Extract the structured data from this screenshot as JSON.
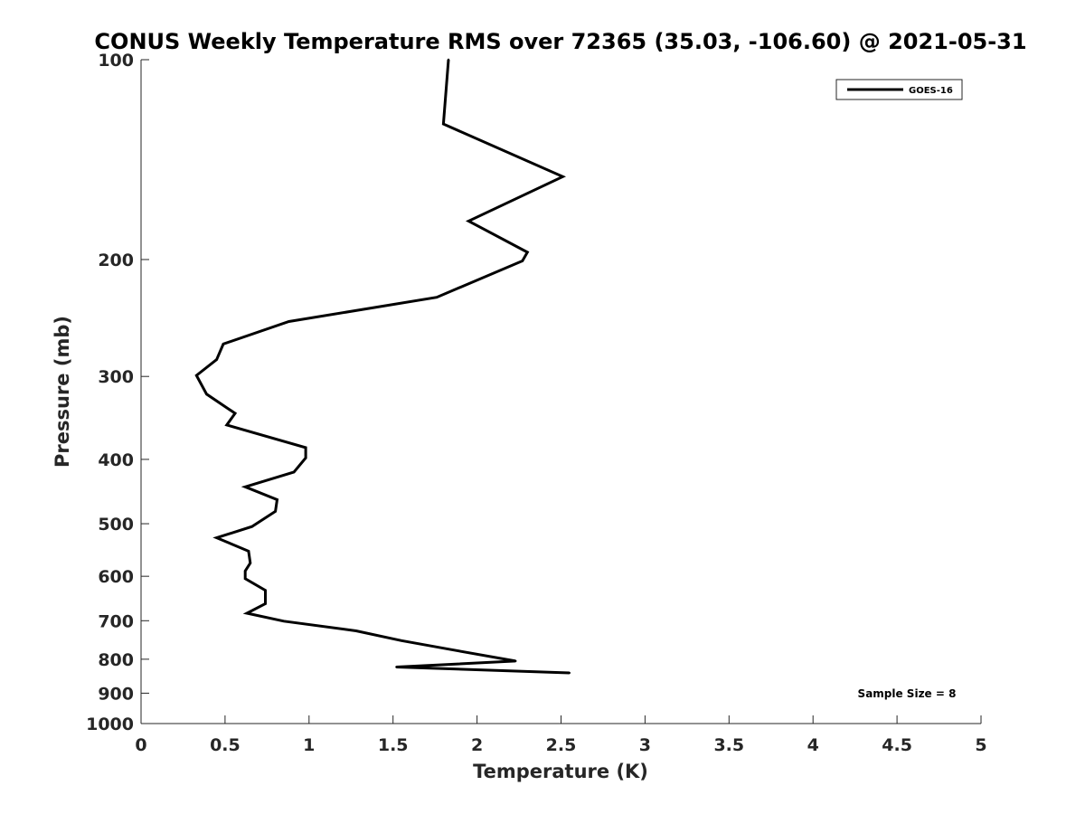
{
  "chart_data": {
    "type": "line",
    "title": "CONUS Weekly Temperature RMS over 72365 (35.03, -106.60) @ 2021-05-31",
    "xlabel": "Temperature (K)",
    "ylabel": "Pressure (mb)",
    "xlim": [
      0,
      5
    ],
    "ylim": [
      100,
      1000
    ],
    "y_scale": "log",
    "y_reversed": true,
    "grid": false,
    "legend_position": "top-right",
    "x_ticks": [
      "0",
      "0.5",
      "1",
      "1.5",
      "2",
      "2.5",
      "3",
      "3.5",
      "4",
      "4.5",
      "5"
    ],
    "x_tick_values": [
      0,
      0.5,
      1,
      1.5,
      2,
      2.5,
      3,
      3.5,
      4,
      4.5,
      5
    ],
    "y_ticks": [
      "100",
      "200",
      "300",
      "400",
      "500",
      "600",
      "700",
      "800",
      "900",
      "1000"
    ],
    "y_tick_values": [
      100,
      200,
      300,
      400,
      500,
      600,
      700,
      800,
      900,
      1000
    ],
    "series": [
      {
        "name": "GOES-16",
        "color": "#000000",
        "points": [
          {
            "x": 1.83,
            "y": 100
          },
          {
            "x": 1.8,
            "y": 125
          },
          {
            "x": 2.51,
            "y": 150
          },
          {
            "x": 1.95,
            "y": 175
          },
          {
            "x": 2.3,
            "y": 195
          },
          {
            "x": 2.27,
            "y": 201
          },
          {
            "x": 1.76,
            "y": 228
          },
          {
            "x": 0.88,
            "y": 248
          },
          {
            "x": 0.49,
            "y": 268
          },
          {
            "x": 0.45,
            "y": 283
          },
          {
            "x": 0.33,
            "y": 299
          },
          {
            "x": 0.39,
            "y": 319
          },
          {
            "x": 0.56,
            "y": 341
          },
          {
            "x": 0.51,
            "y": 355
          },
          {
            "x": 0.98,
            "y": 384
          },
          {
            "x": 0.98,
            "y": 398
          },
          {
            "x": 0.91,
            "y": 418
          },
          {
            "x": 0.62,
            "y": 440
          },
          {
            "x": 0.81,
            "y": 460
          },
          {
            "x": 0.8,
            "y": 479
          },
          {
            "x": 0.66,
            "y": 505
          },
          {
            "x": 0.45,
            "y": 525
          },
          {
            "x": 0.64,
            "y": 550
          },
          {
            "x": 0.65,
            "y": 573
          },
          {
            "x": 0.62,
            "y": 589
          },
          {
            "x": 0.62,
            "y": 605
          },
          {
            "x": 0.74,
            "y": 630
          },
          {
            "x": 0.74,
            "y": 645
          },
          {
            "x": 0.74,
            "y": 660
          },
          {
            "x": 0.63,
            "y": 682
          },
          {
            "x": 0.85,
            "y": 701
          },
          {
            "x": 1.28,
            "y": 725
          },
          {
            "x": 1.55,
            "y": 750
          },
          {
            "x": 1.86,
            "y": 775
          },
          {
            "x": 2.23,
            "y": 805
          },
          {
            "x": 1.52,
            "y": 822
          },
          {
            "x": 2.55,
            "y": 839
          }
        ]
      }
    ],
    "annotations": [
      {
        "text": "Sample Size = 8",
        "position": "bottom-right"
      }
    ]
  }
}
